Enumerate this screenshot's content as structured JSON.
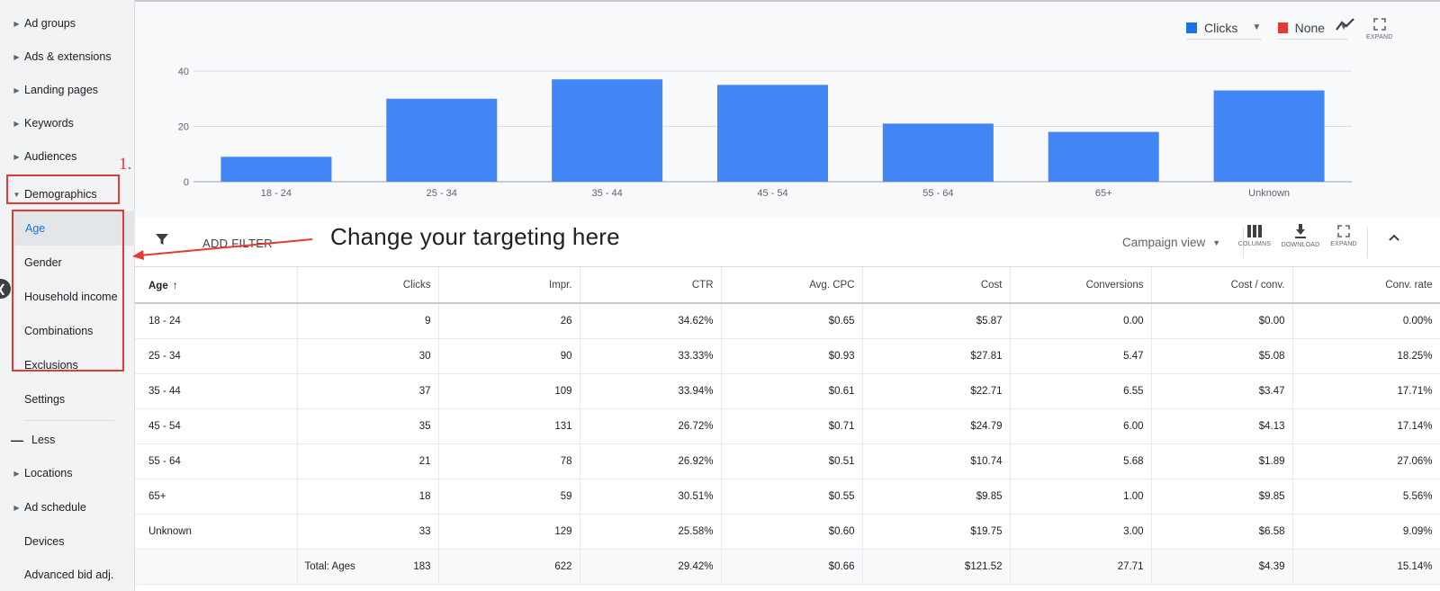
{
  "sidebar": {
    "items": [
      {
        "label": "Ad groups"
      },
      {
        "label": "Ads & extensions"
      },
      {
        "label": "Landing pages"
      },
      {
        "label": "Keywords"
      },
      {
        "label": "Audiences"
      },
      {
        "label": "Demographics"
      },
      {
        "label": "Age"
      },
      {
        "label": "Gender"
      },
      {
        "label": "Household income"
      },
      {
        "label": "Combinations"
      },
      {
        "label": "Exclusions"
      },
      {
        "label": "Settings"
      },
      {
        "label": "Less"
      },
      {
        "label": "Locations"
      },
      {
        "label": "Ad schedule"
      },
      {
        "label": "Devices"
      },
      {
        "label": "Advanced bid adj."
      }
    ]
  },
  "annotations": {
    "step_number": "1.",
    "callout": "Change your targeting here"
  },
  "chart_controls": {
    "metric1": "Clicks",
    "metric1_color": "#1a73e8",
    "metric2": "None",
    "metric2_color": "#e53935",
    "expand_caption": "EXPAND"
  },
  "chart_data": {
    "type": "bar",
    "categories": [
      "18 - 24",
      "25 - 34",
      "35 - 44",
      "45 - 54",
      "55 - 64",
      "65+",
      "Unknown"
    ],
    "series": [
      {
        "name": "Clicks",
        "values": [
          9,
          30,
          37,
          35,
          21,
          18,
          33
        ]
      }
    ],
    "y_ticks": [
      "0",
      "20",
      "40"
    ],
    "ylim": [
      0,
      40
    ],
    "grid": true,
    "bar_color": "#4285f4"
  },
  "toolbar": {
    "filter_label": "ADD FILTER",
    "view_label": "Campaign view",
    "columns_caption": "COLUMNS",
    "download_caption": "DOWNLOAD",
    "expand_caption": "EXPAND"
  },
  "table": {
    "columns": [
      "Age",
      "Clicks",
      "Impr.",
      "CTR",
      "Avg. CPC",
      "Cost",
      "Conversions",
      "Cost / conv.",
      "Conv. rate"
    ],
    "rows": [
      [
        "18 - 24",
        "9",
        "26",
        "34.62%",
        "$0.65",
        "$5.87",
        "0.00",
        "$0.00",
        "0.00%"
      ],
      [
        "25 - 34",
        "30",
        "90",
        "33.33%",
        "$0.93",
        "$27.81",
        "5.47",
        "$5.08",
        "18.25%"
      ],
      [
        "35 - 44",
        "37",
        "109",
        "33.94%",
        "$0.61",
        "$22.71",
        "6.55",
        "$3.47",
        "17.71%"
      ],
      [
        "45 - 54",
        "35",
        "131",
        "26.72%",
        "$0.71",
        "$24.79",
        "6.00",
        "$4.13",
        "17.14%"
      ],
      [
        "55 - 64",
        "21",
        "78",
        "26.92%",
        "$0.51",
        "$10.74",
        "5.68",
        "$1.89",
        "27.06%"
      ],
      [
        "65+",
        "18",
        "59",
        "30.51%",
        "$0.55",
        "$9.85",
        "1.00",
        "$9.85",
        "5.56%"
      ],
      [
        "Unknown",
        "33",
        "129",
        "25.58%",
        "$0.60",
        "$19.75",
        "3.00",
        "$6.58",
        "9.09%"
      ]
    ],
    "total": {
      "label": "Total: Ages",
      "values": [
        "183",
        "622",
        "29.42%",
        "$0.66",
        "$121.52",
        "27.71",
        "$4.39",
        "15.14%"
      ]
    }
  }
}
